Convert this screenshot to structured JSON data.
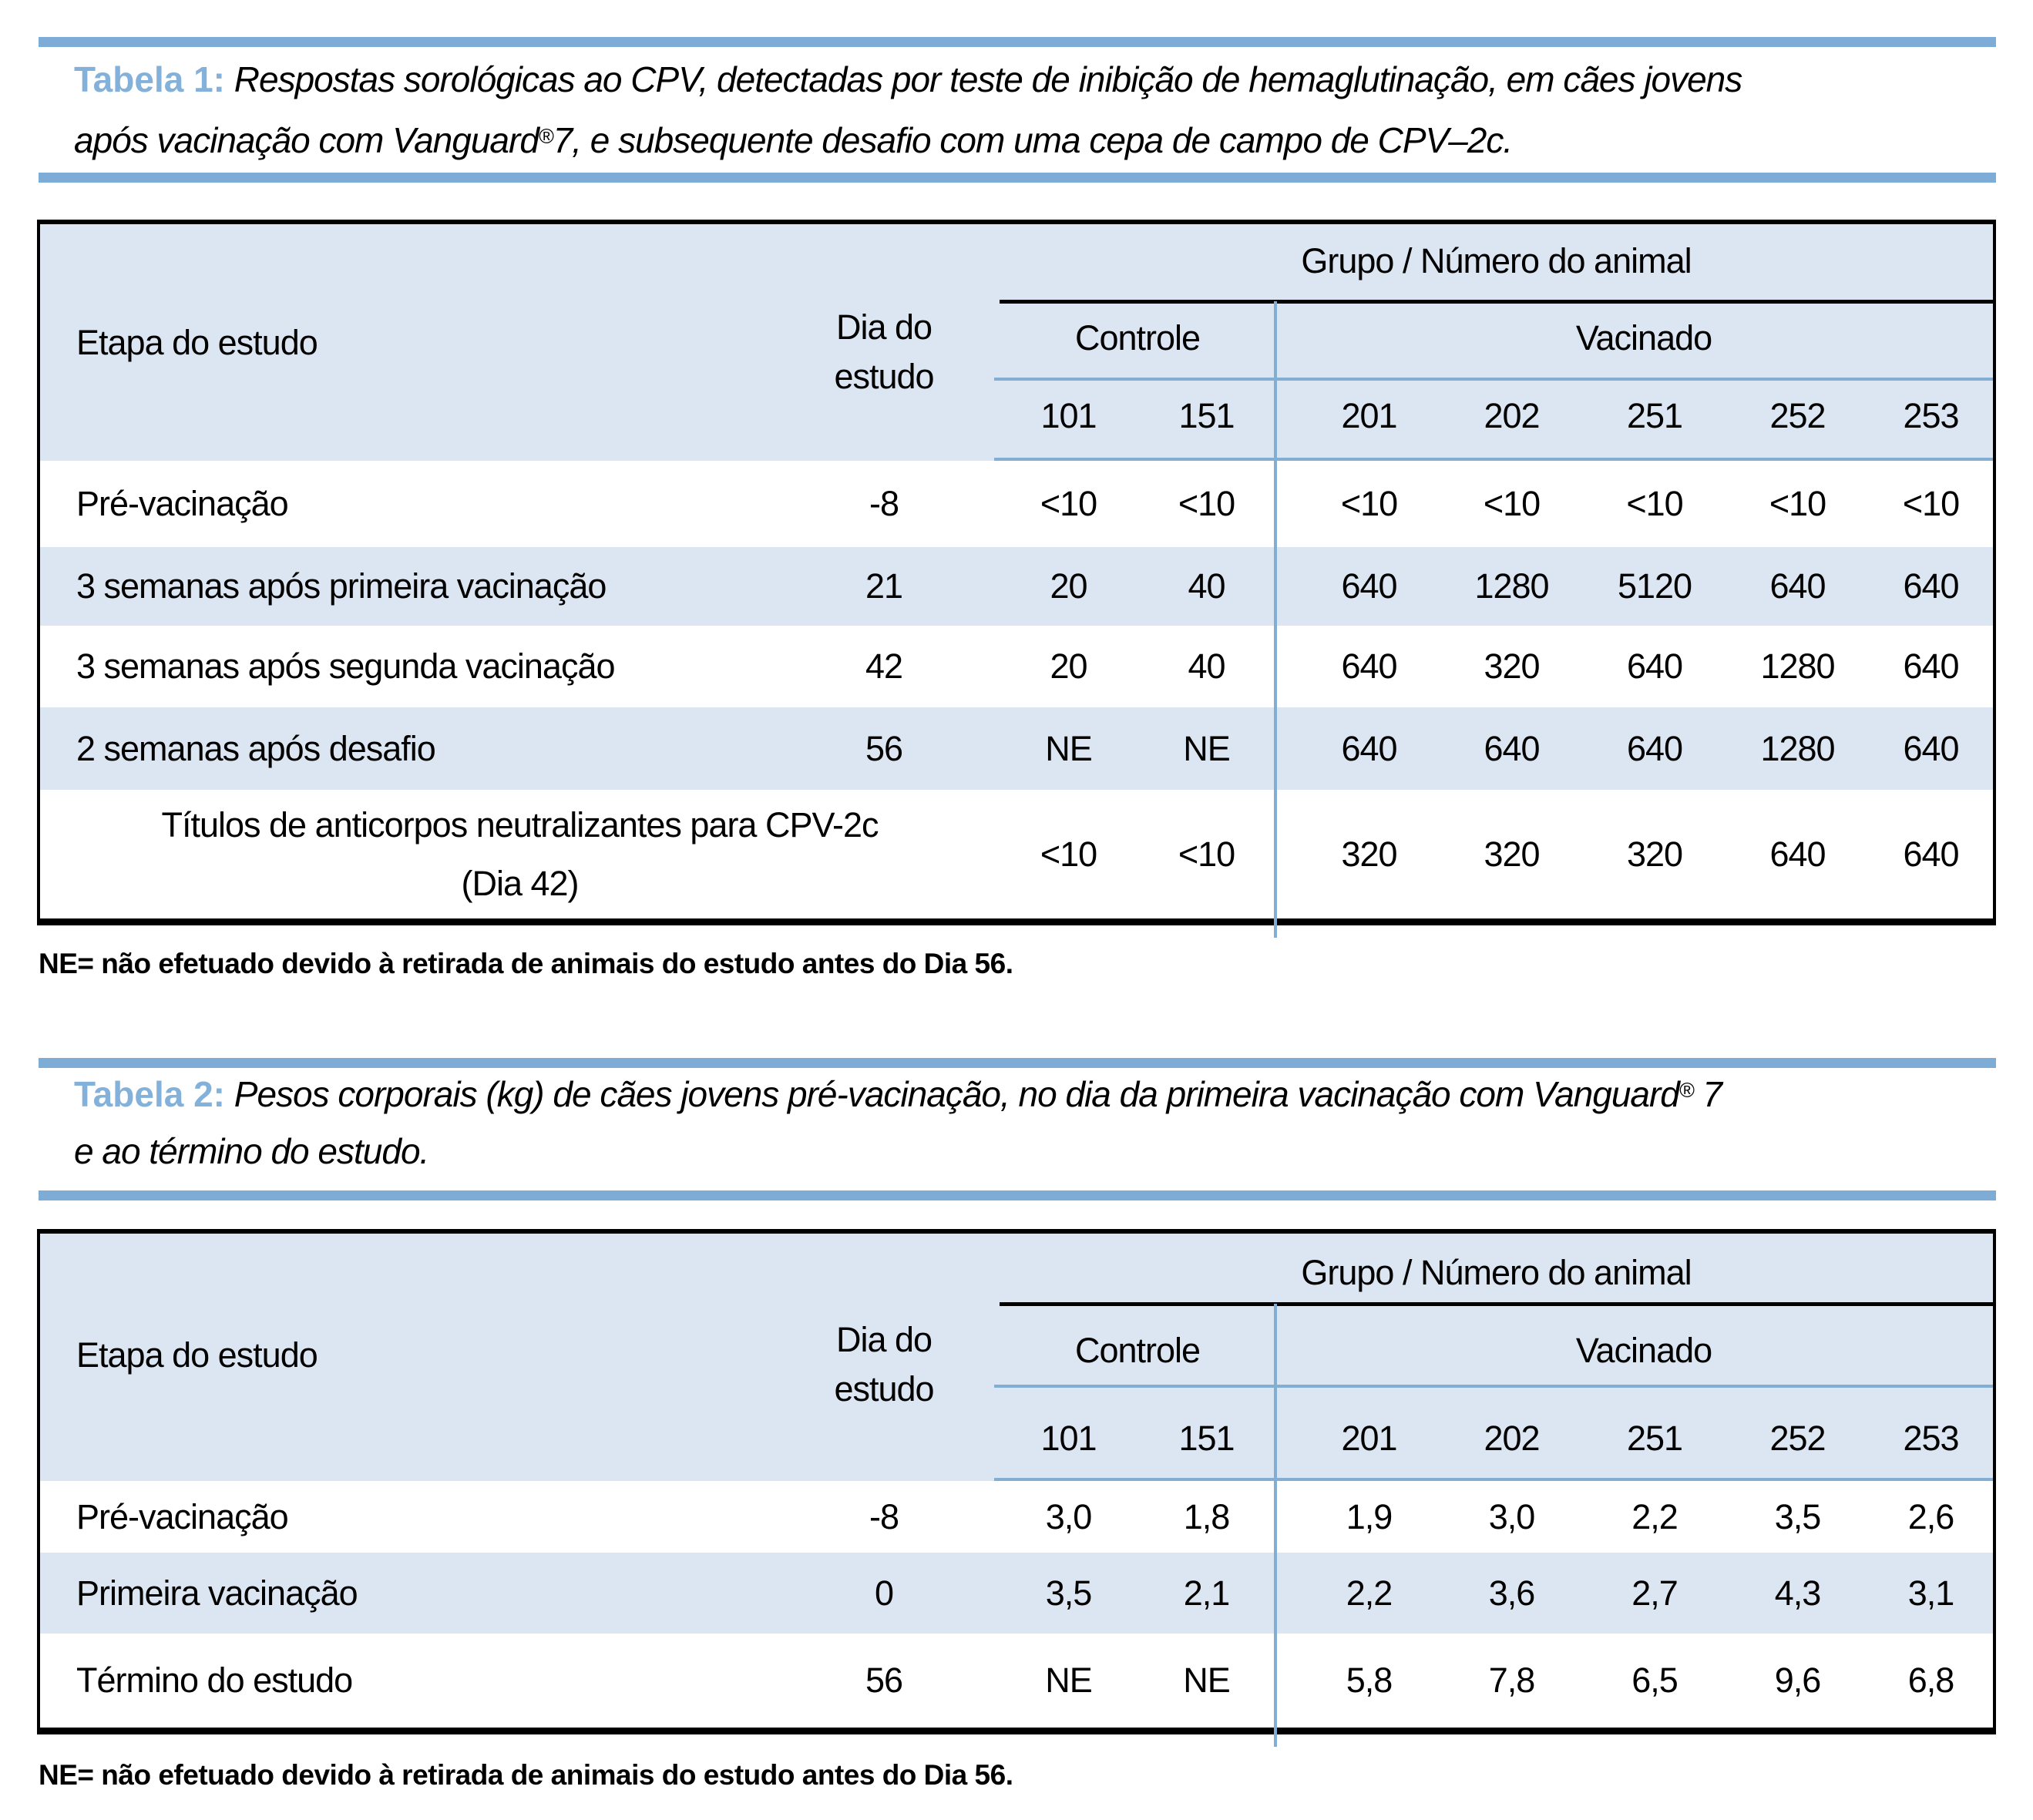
{
  "colors": {
    "accent_bar_blue": "#7dadd6",
    "table_line_blue": "#83aed3",
    "band_background": "#dce6f3",
    "caption_label_blue": "#84b1d9"
  },
  "table1": {
    "caption_label": "Tabela 1:",
    "caption_line1": "Respostas sorológicas ao CPV, detectadas por teste de inibição de hemaglutinação, em cães jovens",
    "caption_line2_pre": "após vacinação com Vanguard",
    "caption_reg_mark": "®",
    "caption_line2_post": "7, e subsequente desafio com uma cepa de campo de CPV–2c.",
    "header": {
      "stage_col": "Etapa do estudo",
      "day_col_line1": "Dia do",
      "day_col_line2": "estudo",
      "group_header": "Grupo / Número do animal",
      "control_group": "Controle",
      "vaccinated_group": "Vacinado",
      "animal_ids": [
        "101",
        "151",
        "201",
        "202",
        "251",
        "252",
        "253"
      ]
    },
    "rows": [
      {
        "label": "Pré-vacinação",
        "day": "-8",
        "values": [
          "<10",
          "<10",
          "<10",
          "<10",
          "<10",
          "<10",
          "<10"
        ]
      },
      {
        "label": "3 semanas após primeira vacinação",
        "day": "21",
        "values": [
          "20",
          "40",
          "640",
          "1280",
          "5120",
          "640",
          "640"
        ]
      },
      {
        "label": "3 semanas após segunda vacinação",
        "day": "42",
        "values": [
          "20",
          "40",
          "640",
          "320",
          "640",
          "1280",
          "640"
        ]
      },
      {
        "label": "2 semanas após desafio",
        "day": "56",
        "values": [
          "NE",
          "NE",
          "640",
          "640",
          "640",
          "1280",
          "640"
        ]
      },
      {
        "label_line1": "Títulos de anticorpos neutralizantes para CPV-2c",
        "label_line2": "(Dia 42)",
        "values": [
          "<10",
          "<10",
          "320",
          "320",
          "320",
          "640",
          "640"
        ]
      }
    ],
    "footnote": "NE= não efetuado devido à retirada de animais do estudo antes do Dia 56."
  },
  "table2": {
    "caption_label": "Tabela 2:",
    "caption_line1_pre": "Pesos corporais (kg) de cães jovens pré-vacinação, no dia da primeira vacinação com Vanguard",
    "caption_reg_mark": "®",
    "caption_line1_post": " 7",
    "caption_line2": "e ao término do estudo.",
    "header": {
      "stage_col": "Etapa do estudo",
      "day_col_line1": "Dia do",
      "day_col_line2": "estudo",
      "group_header": "Grupo / Número do animal",
      "control_group": "Controle",
      "vaccinated_group": "Vacinado",
      "animal_ids": [
        "101",
        "151",
        "201",
        "202",
        "251",
        "252",
        "253"
      ]
    },
    "rows": [
      {
        "label": "Pré-vacinação",
        "day": "-8",
        "values": [
          "3,0",
          "1,8",
          "1,9",
          "3,0",
          "2,2",
          "3,5",
          "2,6"
        ]
      },
      {
        "label": "Primeira vacinação",
        "day": "0",
        "values": [
          "3,5",
          "2,1",
          "2,2",
          "3,6",
          "2,7",
          "4,3",
          "3,1"
        ]
      },
      {
        "label": "Término do estudo",
        "day": "56",
        "values": [
          "NE",
          "NE",
          "5,8",
          "7,8",
          "6,5",
          "9,6",
          "6,8"
        ]
      }
    ],
    "footnote": "NE= não efetuado devido à retirada de animais do estudo antes do Dia 56."
  }
}
